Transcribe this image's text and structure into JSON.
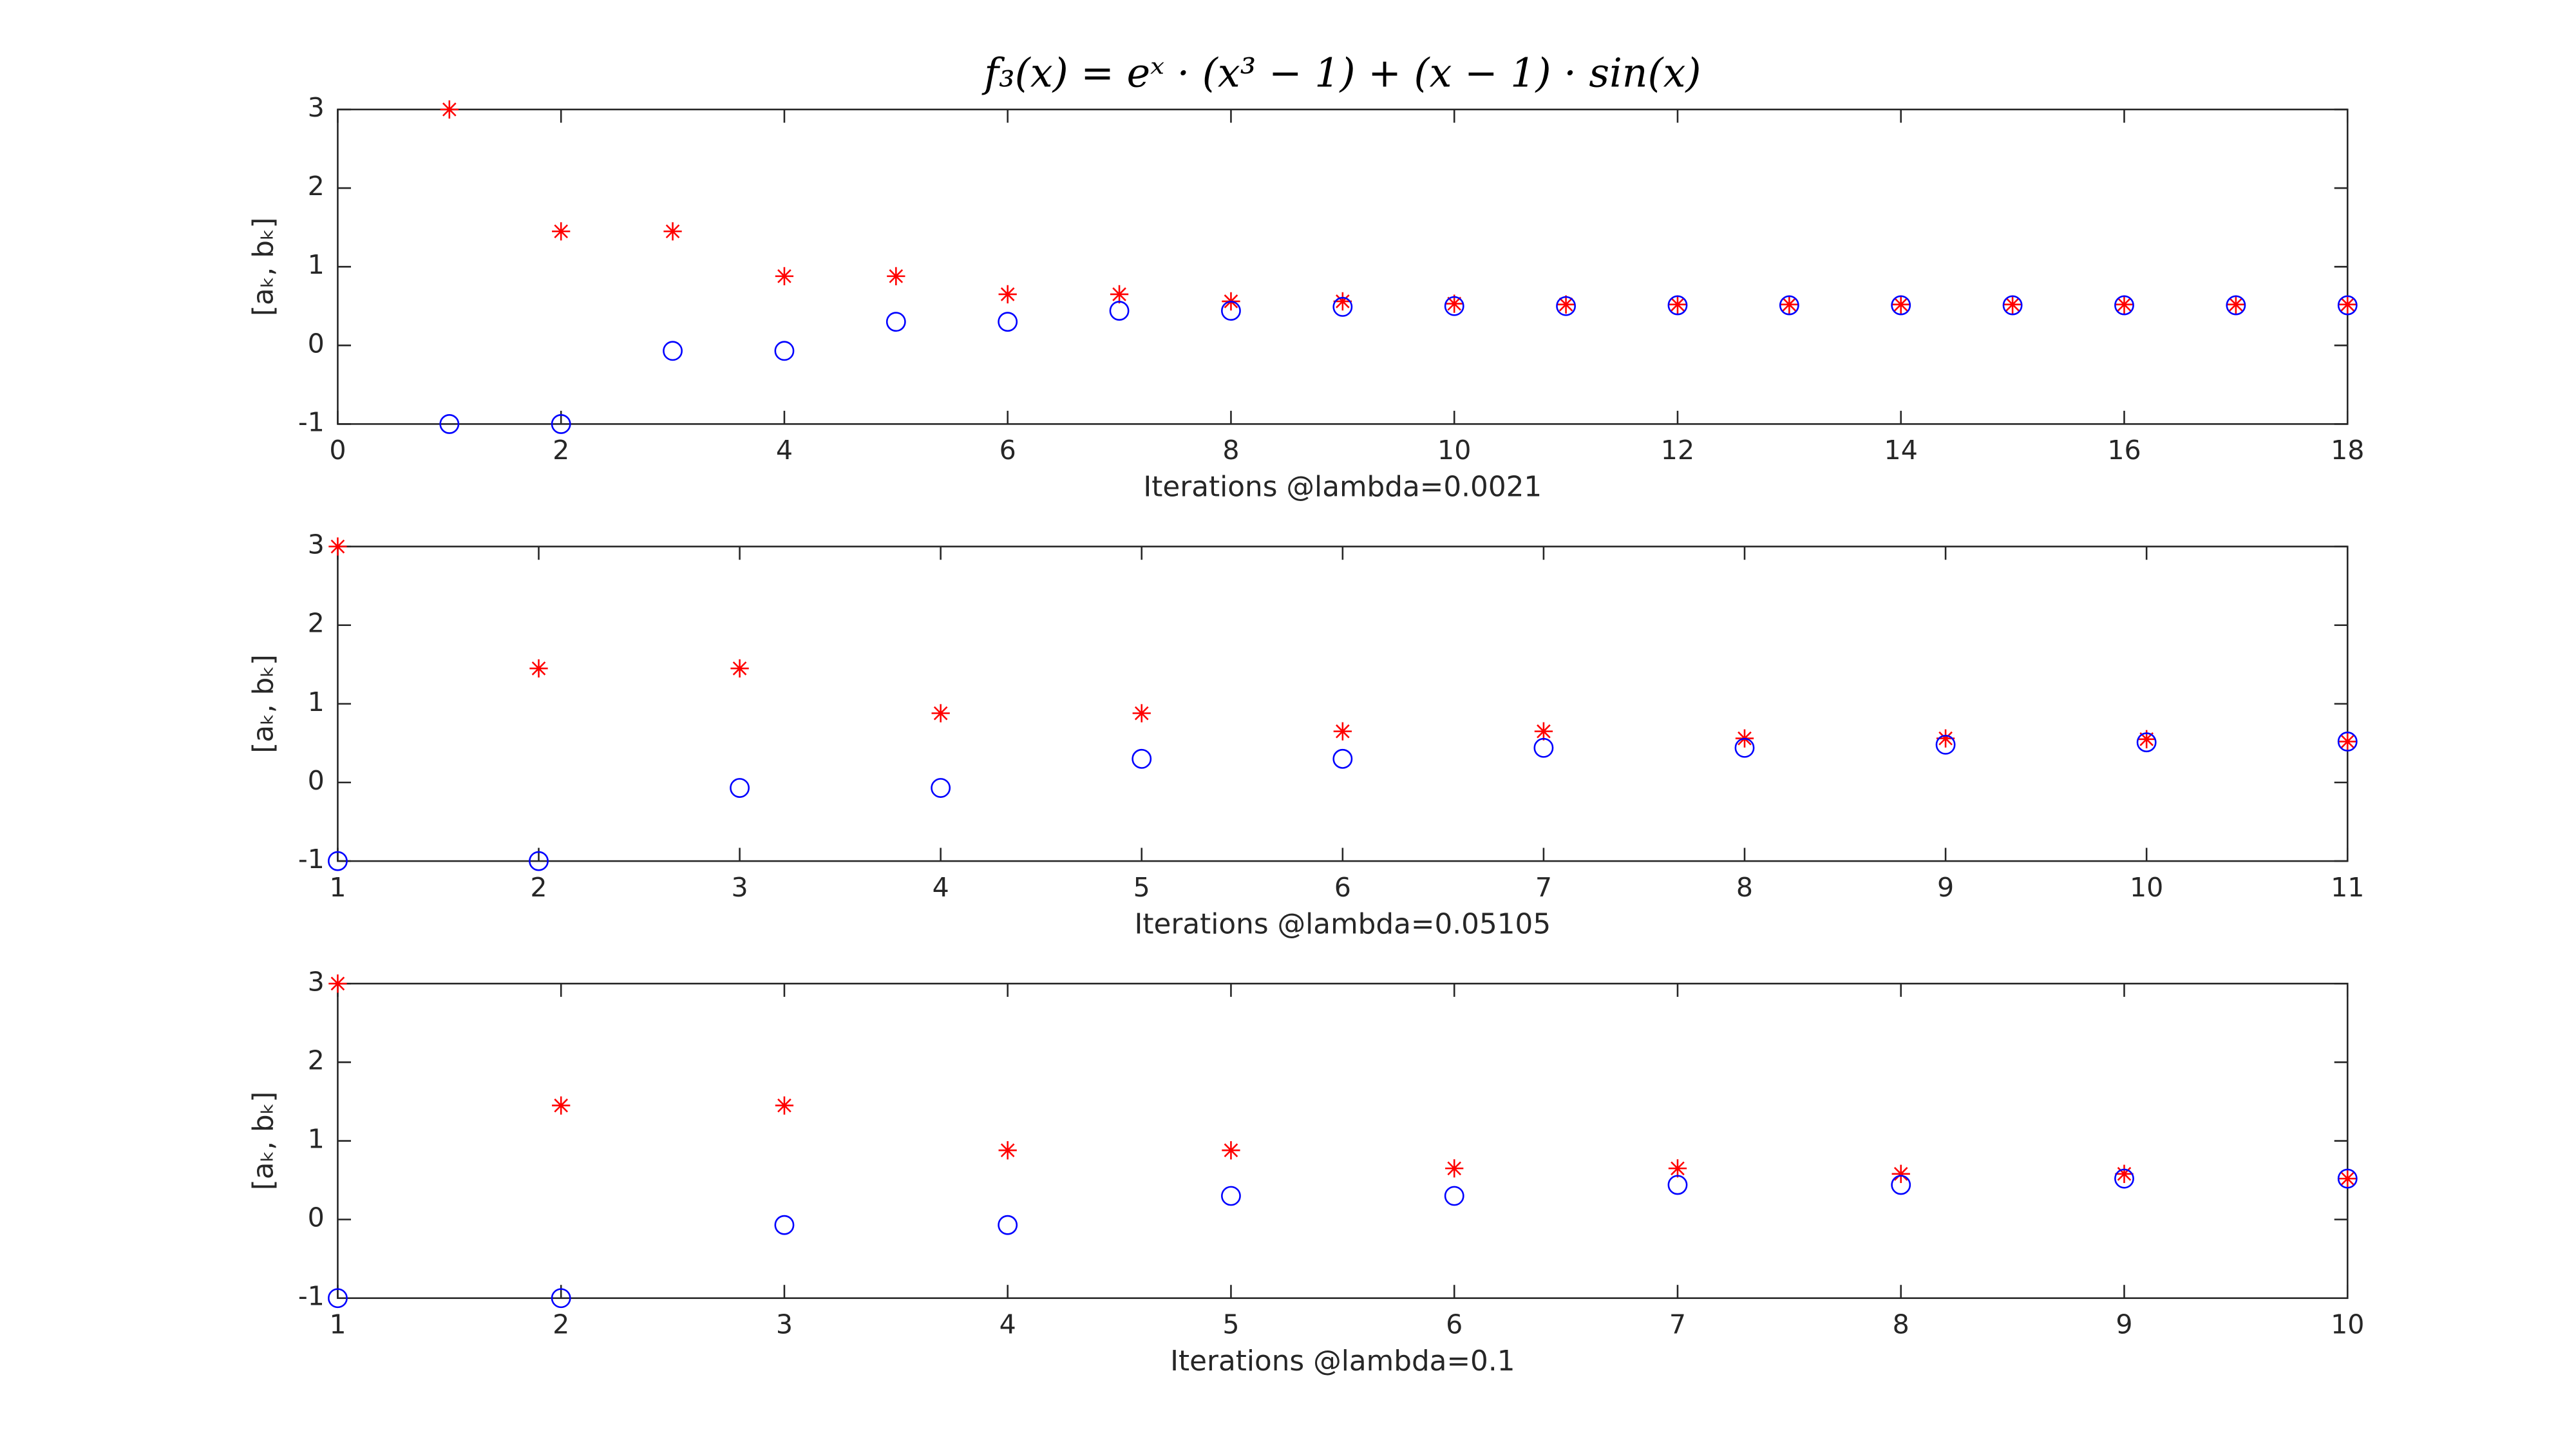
{
  "chart_data": [
    {
      "type": "scatter",
      "title": "f₃(x) = eˣ · (x³ − 1) + (x − 1) · sin(x)",
      "x_label": "Iterations @lambda=0.0021",
      "y_label": "[aₖ, bₖ]",
      "x": [
        1,
        2,
        3,
        4,
        5,
        6,
        7,
        8,
        9,
        10,
        11,
        12,
        13,
        14,
        15,
        16,
        17,
        18
      ],
      "series": [
        {
          "color": "#ff0000",
          "marker": "asterisk",
          "values": [
            3,
            1.45,
            1.45,
            0.88,
            0.88,
            0.65,
            0.65,
            0.56,
            0.56,
            0.53,
            0.52,
            0.52,
            0.52,
            0.52,
            0.52,
            0.52,
            0.52,
            0.52
          ]
        },
        {
          "color": "#0000ff",
          "marker": "circle",
          "values": [
            -1,
            -1,
            -0.07,
            -0.07,
            0.3,
            0.3,
            0.44,
            0.44,
            0.49,
            0.5,
            0.5,
            0.51,
            0.51,
            0.51,
            0.51,
            0.51,
            0.51,
            0.51
          ]
        }
      ],
      "xlim": [
        0,
        18
      ],
      "xticks": [
        0,
        2,
        4,
        6,
        8,
        10,
        12,
        14,
        16,
        18
      ],
      "ylim": [
        -1,
        3
      ],
      "yticks": [
        -1,
        0,
        1,
        2,
        3
      ]
    },
    {
      "type": "scatter",
      "x_label": "Iterations @lambda=0.05105",
      "y_label": "[aₖ, bₖ]",
      "x": [
        1,
        2,
        3,
        4,
        5,
        6,
        7,
        8,
        9,
        10,
        11
      ],
      "series": [
        {
          "color": "#ff0000",
          "marker": "asterisk",
          "values": [
            3,
            1.45,
            1.45,
            0.88,
            0.88,
            0.65,
            0.65,
            0.56,
            0.56,
            0.55,
            0.52
          ]
        },
        {
          "color": "#0000ff",
          "marker": "circle",
          "values": [
            -1,
            -1,
            -0.07,
            -0.07,
            0.3,
            0.3,
            0.44,
            0.44,
            0.48,
            0.51,
            0.52
          ]
        }
      ],
      "xlim": [
        1,
        11
      ],
      "xticks": [
        1,
        2,
        3,
        4,
        5,
        6,
        7,
        8,
        9,
        10,
        11
      ],
      "ylim": [
        -1,
        3
      ],
      "yticks": [
        -1,
        0,
        1,
        2,
        3
      ]
    },
    {
      "type": "scatter",
      "x_label": "Iterations @lambda=0.1",
      "y_label": "[aₖ, bₖ]",
      "x": [
        1,
        2,
        3,
        4,
        5,
        6,
        7,
        8,
        9,
        10
      ],
      "series": [
        {
          "color": "#ff0000",
          "marker": "asterisk",
          "values": [
            3,
            1.45,
            1.45,
            0.88,
            0.88,
            0.65,
            0.65,
            0.58,
            0.58,
            0.52
          ]
        },
        {
          "color": "#0000ff",
          "marker": "circle",
          "values": [
            -1,
            -1,
            -0.07,
            -0.07,
            0.3,
            0.3,
            0.44,
            0.44,
            0.52,
            0.52
          ]
        }
      ],
      "xlim": [
        1,
        10
      ],
      "xticks": [
        1,
        2,
        3,
        4,
        5,
        6,
        7,
        8,
        9,
        10
      ],
      "ylim": [
        -1,
        3
      ],
      "yticks": [
        -1,
        0,
        1,
        2,
        3
      ]
    }
  ]
}
